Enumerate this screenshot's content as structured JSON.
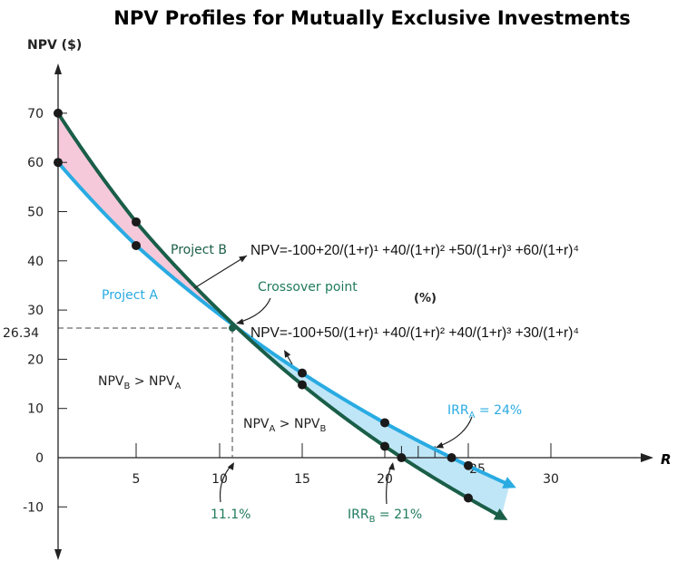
{
  "chart_data": {
    "type": "line",
    "title": "NPV Profiles for Mutually Exclusive Investments",
    "ylabel": "NPV ($)",
    "xlabel": "R",
    "x_unit": "(%)",
    "xlim": [
      0,
      33
    ],
    "ylim": [
      -20,
      80
    ],
    "x_ticks": [
      5,
      10,
      15,
      20,
      25,
      30
    ],
    "y_ticks": [
      70,
      60,
      50,
      40,
      30,
      20,
      10,
      0,
      -10
    ],
    "grid": false,
    "colors": {
      "project_a": "#29abe2",
      "project_b": "#1a5e48",
      "fill_b_above": "#f6c9da",
      "fill_a_above": "#bfe6f7",
      "annotation": "#1f7a5e"
    },
    "series": [
      {
        "name": "Project A",
        "formula": "NPV=-100+50/(1+r)¹ +40/(1+r)² +40/(1+r)³ +30/(1+r)⁴",
        "cash_flows": [
          -100,
          50,
          40,
          40,
          30
        ],
        "points": [
          [
            0,
            60
          ],
          [
            5,
            43.1
          ],
          [
            15,
            17.2
          ],
          [
            20,
            7.1
          ],
          [
            24,
            0
          ],
          [
            25,
            -1.6
          ]
        ],
        "x_end": 27.5
      },
      {
        "name": "Project B",
        "formula": "NPV=-100+20/(1+r)¹ +40/(1+r)² +50/(1+r)³ +60/(1+r)⁴",
        "cash_flows": [
          -100,
          20,
          40,
          50,
          60
        ],
        "points": [
          [
            0,
            70
          ],
          [
            5,
            47.9
          ],
          [
            15,
            14.8
          ],
          [
            20,
            2.3
          ],
          [
            21,
            0
          ],
          [
            25,
            -8.2
          ]
        ],
        "x_end": 27
      }
    ],
    "crossover": {
      "x": 11.1,
      "y": 26.34,
      "label": "Crossover point",
      "y_label": "26.34",
      "x_label": "11.1%"
    },
    "annotations": {
      "b_greater": [
        "NPV",
        "B",
        " > NPV",
        "A"
      ],
      "a_greater": [
        "NPV",
        "A",
        " > NPV",
        "B"
      ],
      "irr_a": [
        "IRR",
        "A",
        " = 24%"
      ],
      "irr_b": [
        "IRR",
        "B",
        " = 21%"
      ]
    }
  }
}
